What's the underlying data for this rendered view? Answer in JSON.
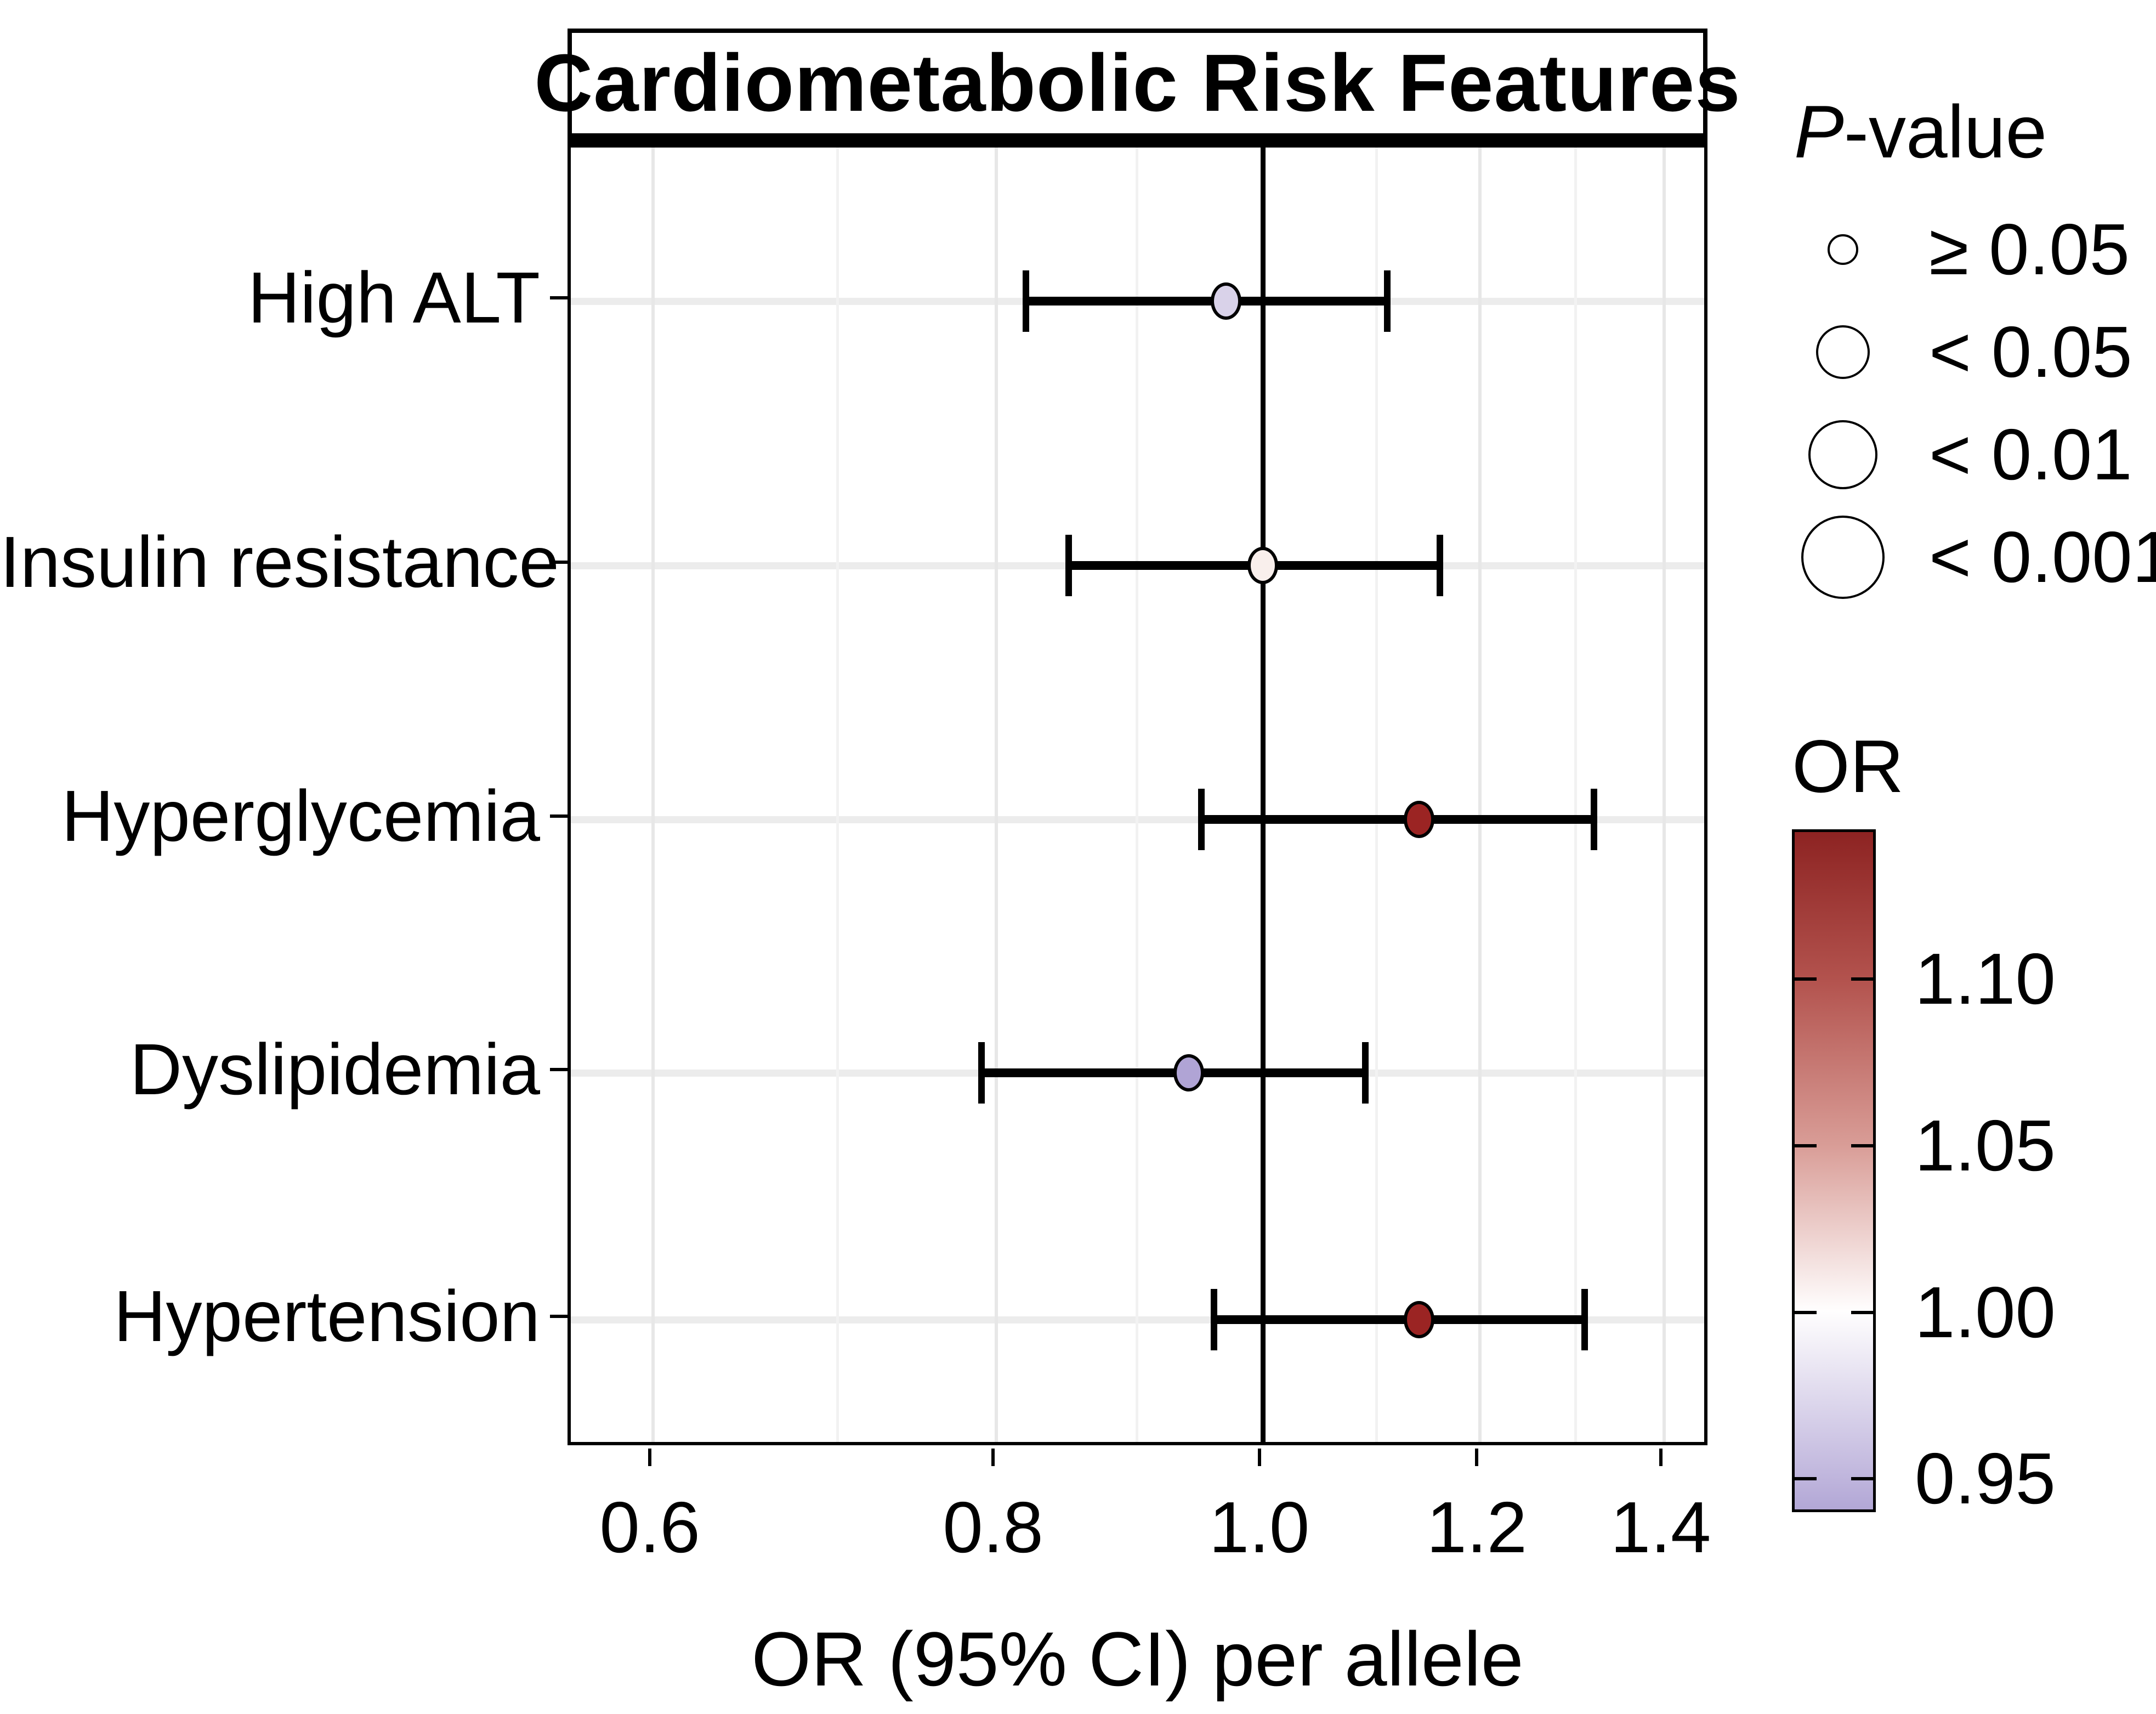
{
  "figure": {
    "title": "Cardiometabolic Risk Features",
    "x_axis_label": "OR (95% CI) per allele"
  },
  "size_legend": {
    "title_italic": "P",
    "title_rest": "-value",
    "items": [
      {
        "label": "≥ 0.05",
        "diameter": 56
      },
      {
        "label": "< 0.05",
        "diameter": 98
      },
      {
        "label": "< 0.01",
        "diameter": 126
      },
      {
        "label": "< 0.001",
        "diameter": 152
      }
    ]
  },
  "color_legend": {
    "title": "OR",
    "range_top": 1.145,
    "range_bottom": 0.94,
    "ticks": [
      {
        "value": 1.1,
        "label": "1.10"
      },
      {
        "value": 1.05,
        "label": "1.05"
      },
      {
        "value": 1.0,
        "label": "1.00"
      },
      {
        "value": 0.95,
        "label": "0.95"
      }
    ],
    "gradient_colors": {
      "top_dark_red": "#8d2322",
      "red_1_10": "#b3534e",
      "pink_1_05": "#d99d97",
      "white_1_00": "#ffffff",
      "lavender_0_95": "#c0b6dd",
      "bottom_purple": "#b2a7d6"
    }
  },
  "chart_data": {
    "type": "scatter",
    "variant": "forest-plot",
    "title": "Cardiometabolic Risk Features",
    "xlabel": "OR (95% CI) per allele",
    "x_scale": "log",
    "xlim": [
      0.56,
      1.456
    ],
    "x_ticks": [
      0.6,
      0.8,
      1.0,
      1.2,
      1.4
    ],
    "x_tick_labels": [
      "0.6",
      "0.8",
      "1.0",
      "1.2",
      "1.4"
    ],
    "x_minor_ticks": [
      0.7,
      0.9,
      1.1,
      1.3
    ],
    "reference_line_x": 1.0,
    "grid": true,
    "legend_position": "right",
    "categories": [
      "High ALT",
      "Insulin resistance",
      "Hyperglycemia",
      "Dyslipidemia",
      "Hypertension"
    ],
    "rows": [
      {
        "label": "High ALT",
        "or": 0.97,
        "ci_low": 0.82,
        "ci_high": 1.11,
        "p_category": "≥ 0.05",
        "fill": "#d9d2e9"
      },
      {
        "label": "Insulin resistance",
        "or": 1.0,
        "ci_low": 0.85,
        "ci_high": 1.16,
        "p_category": "≥ 0.05",
        "fill": "#f9efec"
      },
      {
        "label": "Hyperglycemia",
        "or": 1.14,
        "ci_low": 0.95,
        "ci_high": 1.32,
        "p_category": "≥ 0.05",
        "fill": "#9b2423"
      },
      {
        "label": "Dyslipidemia",
        "or": 0.94,
        "ci_low": 0.79,
        "ci_high": 1.09,
        "p_category": "≥ 0.05",
        "fill": "#b0a4d5"
      },
      {
        "label": "Hypertension",
        "or": 1.14,
        "ci_low": 0.96,
        "ci_high": 1.31,
        "p_category": "≥ 0.05",
        "fill": "#9b2423"
      }
    ],
    "or_color_scale": {
      "min": 0.94,
      "max": 1.145,
      "mid_value": 1.0,
      "min_color": "#b2a7d6",
      "mid_color": "#ffffff",
      "max_color": "#8d2322"
    }
  }
}
